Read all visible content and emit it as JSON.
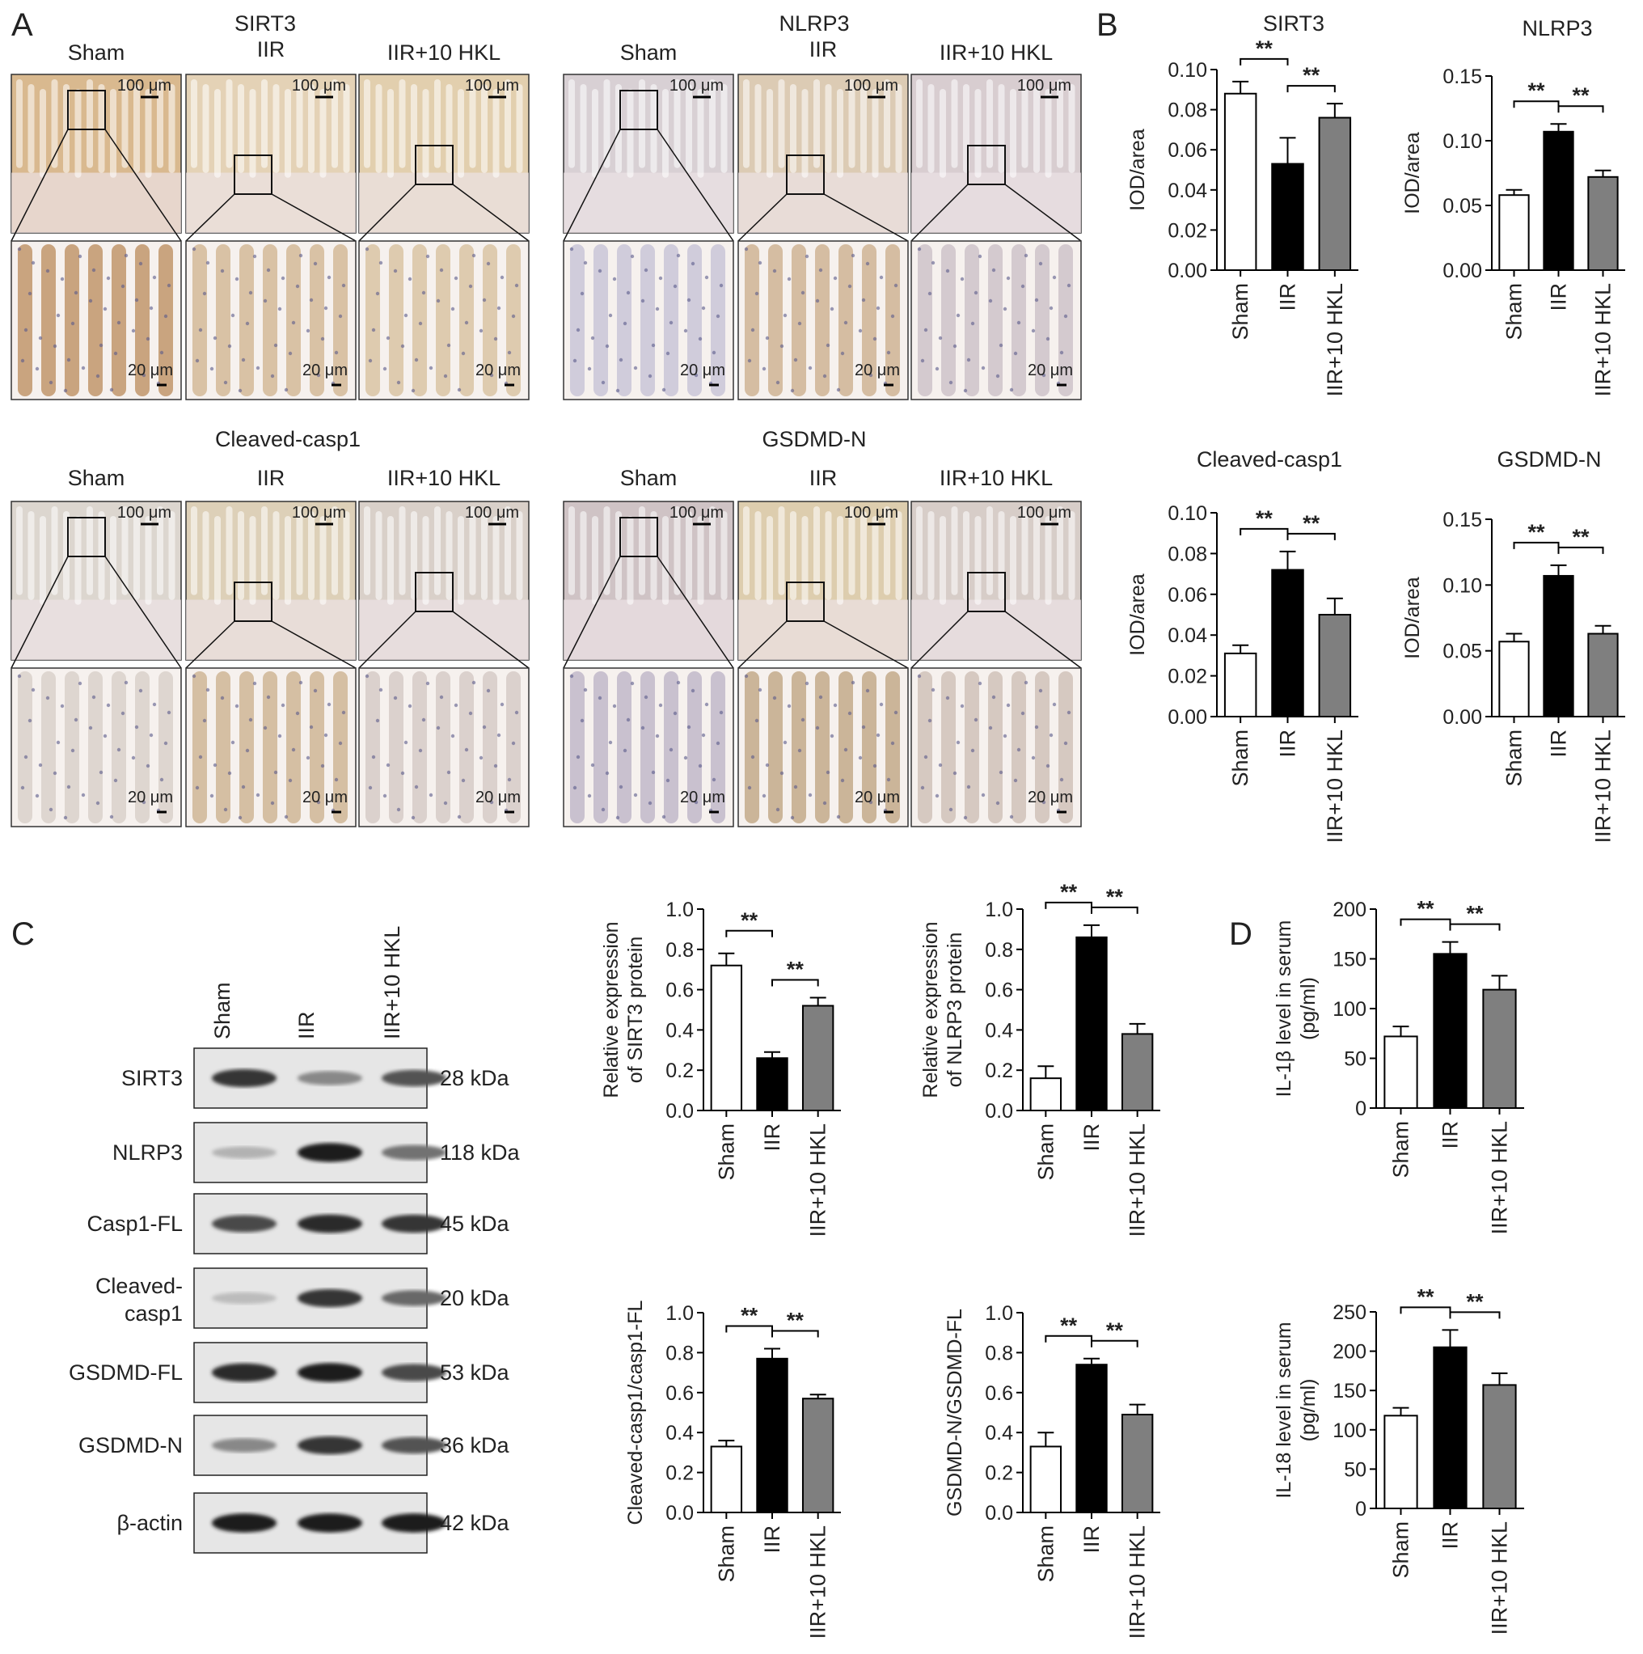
{
  "panel_labels": [
    "A",
    "B",
    "C",
    "D"
  ],
  "groups": [
    "Sham",
    "IIR",
    "IIR+10 HKL"
  ],
  "panel_a": {
    "scale_large": "100 μm",
    "scale_small": "20 μm",
    "stains": [
      {
        "name": "SIRT3",
        "group_labels": [
          "Sham",
          "IIR",
          "IIR+10 HKL"
        ],
        "tones": [
          "#d9b98f",
          "#e4d2b6",
          "#e2cfae"
        ],
        "zoom_tones": [
          "#b98a5a",
          "#cfb28c",
          "#d6bd9a"
        ]
      },
      {
        "name": "NLRP3",
        "group_labels": [
          "Sham",
          "IIR",
          "IIR+10 HKL"
        ],
        "tones": [
          "#d8d0d4",
          "#dccbb4",
          "#d8cdd0"
        ],
        "zoom_tones": [
          "#c3bfd4",
          "#c9ab88",
          "#c8bcc4"
        ]
      },
      {
        "name": "Cleaved-casp1",
        "group_labels": [
          "Sham",
          "IIR",
          "IIR+10 HKL"
        ],
        "tones": [
          "#dcd6cf",
          "#ddd0b8",
          "#d9d0c9"
        ],
        "zoom_tones": [
          "#d6ccc6",
          "#c9ae8a",
          "#d2c6c1"
        ]
      },
      {
        "name": "GSDMD-N",
        "group_labels": [
          "Sham",
          "IIR",
          "IIR+10 HKL"
        ],
        "tones": [
          "#cfc3c5",
          "#ddcdae",
          "#d7cdc8"
        ],
        "zoom_tones": [
          "#b9b0c4",
          "#bca07c",
          "#cbbbb1"
        ]
      }
    ]
  },
  "panel_b_ylabel": "IOD/area",
  "panel_c_blot": {
    "rows": [
      {
        "label": [
          "SIRT3"
        ],
        "kda": "28 kDa",
        "intensity": [
          0.85,
          0.45,
          0.7
        ]
      },
      {
        "label": [
          "NLRP3"
        ],
        "kda": "118 kDa",
        "intensity": [
          0.25,
          0.95,
          0.55
        ]
      },
      {
        "label": [
          "Casp1-FL"
        ],
        "kda": "45 kDa",
        "intensity": [
          0.75,
          0.9,
          0.85
        ]
      },
      {
        "label": [
          "Cleaved-",
          "casp1"
        ],
        "kda": "20 kDa",
        "intensity": [
          0.2,
          0.85,
          0.6
        ]
      },
      {
        "label": [
          "GSDMD-FL"
        ],
        "kda": "53 kDa",
        "intensity": [
          0.9,
          0.95,
          0.75
        ]
      },
      {
        "label": [
          "GSDMD-N"
        ],
        "kda": "36 kDa",
        "intensity": [
          0.45,
          0.85,
          0.7
        ]
      },
      {
        "label": [
          "β-actin"
        ],
        "kda": "42 kDa",
        "intensity": [
          0.95,
          0.95,
          0.95
        ]
      }
    ]
  },
  "significance_mark": "**",
  "colors": {
    "sham": "#ffffff",
    "iir": "#000000",
    "hkl": "#7f7f7f"
  },
  "chart_data": [
    {
      "id": "b_sirt3",
      "type": "bar",
      "title": "SIRT3",
      "ylabel": [
        "IOD/area"
      ],
      "categories": [
        "Sham",
        "IIR",
        "IIR+10 HKL"
      ],
      "values": [
        0.088,
        0.053,
        0.076
      ],
      "errors": [
        0.006,
        0.013,
        0.007
      ],
      "ylim": [
        0,
        0.1
      ],
      "yticks": [
        "0.00",
        "0.02",
        "0.04",
        "0.06",
        "0.08",
        "0.10"
      ],
      "ytick_values": [
        0,
        0.02,
        0.04,
        0.06,
        0.08,
        0.1
      ],
      "significance": [
        [
          0,
          1,
          "**"
        ],
        [
          1,
          2,
          "**"
        ]
      ]
    },
    {
      "id": "b_nlrp3",
      "type": "bar",
      "title": "NLRP3",
      "ylabel": [
        "IOD/area"
      ],
      "categories": [
        "Sham",
        "IIR",
        "IIR+10 HKL"
      ],
      "values": [
        0.058,
        0.107,
        0.072
      ],
      "errors": [
        0.004,
        0.006,
        0.005
      ],
      "ylim": [
        0,
        0.15
      ],
      "yticks": [
        "0.00",
        "0.05",
        "0.10",
        "0.15"
      ],
      "ytick_values": [
        0,
        0.05,
        0.1,
        0.15
      ],
      "significance": [
        [
          0,
          1,
          "**"
        ],
        [
          1,
          2,
          "**"
        ]
      ]
    },
    {
      "id": "b_casp1",
      "type": "bar",
      "title": "Cleaved-casp1",
      "ylabel": [
        "IOD/area"
      ],
      "categories": [
        "Sham",
        "IIR",
        "IIR+10 HKL"
      ],
      "values": [
        0.031,
        0.072,
        0.05
      ],
      "errors": [
        0.004,
        0.009,
        0.008
      ],
      "ylim": [
        0,
        0.1
      ],
      "yticks": [
        "0.00",
        "0.02",
        "0.04",
        "0.06",
        "0.08",
        "0.10"
      ],
      "ytick_values": [
        0,
        0.02,
        0.04,
        0.06,
        0.08,
        0.1
      ],
      "significance": [
        [
          0,
          1,
          "**"
        ],
        [
          1,
          2,
          "**"
        ]
      ]
    },
    {
      "id": "b_gsdmd",
      "type": "bar",
      "title": "GSDMD-N",
      "ylabel": [
        "IOD/area"
      ],
      "categories": [
        "Sham",
        "IIR",
        "IIR+10 HKL"
      ],
      "values": [
        0.057,
        0.107,
        0.063
      ],
      "errors": [
        0.006,
        0.008,
        0.006
      ],
      "ylim": [
        0,
        0.15
      ],
      "yticks": [
        "0.00",
        "0.05",
        "0.10",
        "0.15"
      ],
      "ytick_values": [
        0,
        0.05,
        0.1,
        0.15
      ],
      "significance": [
        [
          0,
          1,
          "**"
        ],
        [
          1,
          2,
          "**"
        ]
      ]
    },
    {
      "id": "c_sirt3",
      "type": "bar",
      "title": "",
      "ylabel": [
        "Relative expression",
        "of SIRT3 protein"
      ],
      "categories": [
        "Sham",
        "IIR",
        "IIR+10 HKL"
      ],
      "values": [
        0.72,
        0.26,
        0.52
      ],
      "errors": [
        0.06,
        0.03,
        0.04
      ],
      "ylim": [
        0,
        1
      ],
      "yticks": [
        "0.0",
        "0.2",
        "0.4",
        "0.6",
        "0.8",
        "1.0"
      ],
      "ytick_values": [
        0,
        0.2,
        0.4,
        0.6,
        0.8,
        1
      ],
      "significance": [
        [
          0,
          1,
          "**"
        ],
        [
          1,
          2,
          "**"
        ]
      ]
    },
    {
      "id": "c_nlrp3",
      "type": "bar",
      "title": "",
      "ylabel": [
        "Relative expression",
        "of NLRP3 protein"
      ],
      "categories": [
        "Sham",
        "IIR",
        "IIR+10 HKL"
      ],
      "values": [
        0.16,
        0.86,
        0.38
      ],
      "errors": [
        0.06,
        0.06,
        0.05
      ],
      "ylim": [
        0,
        1
      ],
      "yticks": [
        "0.0",
        "0.2",
        "0.4",
        "0.6",
        "0.8",
        "1.0"
      ],
      "ytick_values": [
        0,
        0.2,
        0.4,
        0.6,
        0.8,
        1
      ],
      "significance": [
        [
          0,
          1,
          "**"
        ],
        [
          1,
          2,
          "**"
        ]
      ]
    },
    {
      "id": "c_casp1",
      "type": "bar",
      "title": "",
      "ylabel": [
        "Cleaved-casp1/casp1-FL"
      ],
      "categories": [
        "Sham",
        "IIR",
        "IIR+10 HKL"
      ],
      "values": [
        0.33,
        0.77,
        0.57
      ],
      "errors": [
        0.03,
        0.05,
        0.02
      ],
      "ylim": [
        0,
        1
      ],
      "yticks": [
        "0.0",
        "0.2",
        "0.4",
        "0.6",
        "0.8",
        "1.0"
      ],
      "ytick_values": [
        0,
        0.2,
        0.4,
        0.6,
        0.8,
        1
      ],
      "significance": [
        [
          0,
          1,
          "**"
        ],
        [
          1,
          2,
          "**"
        ]
      ]
    },
    {
      "id": "c_gsdmd",
      "type": "bar",
      "title": "",
      "ylabel": [
        "GSDMD-N/GSDMD-FL"
      ],
      "categories": [
        "Sham",
        "IIR",
        "IIR+10 HKL"
      ],
      "values": [
        0.33,
        0.74,
        0.49
      ],
      "errors": [
        0.07,
        0.03,
        0.05
      ],
      "ylim": [
        0,
        1
      ],
      "yticks": [
        "0.0",
        "0.2",
        "0.4",
        "0.6",
        "0.8",
        "1.0"
      ],
      "ytick_values": [
        0,
        0.2,
        0.4,
        0.6,
        0.8,
        1
      ],
      "significance": [
        [
          0,
          1,
          "**"
        ],
        [
          1,
          2,
          "**"
        ]
      ]
    },
    {
      "id": "d_il1b",
      "type": "bar",
      "title": "",
      "ylabel": [
        "IL-1β level in serum",
        "(pg/ml)"
      ],
      "categories": [
        "Sham",
        "IIR",
        "IIR+10 HKL"
      ],
      "values": [
        72,
        155,
        119
      ],
      "errors": [
        10,
        12,
        14
      ],
      "ylim": [
        0,
        200
      ],
      "yticks": [
        "0",
        "50",
        "100",
        "150",
        "200"
      ],
      "ytick_values": [
        0,
        50,
        100,
        150,
        200
      ],
      "significance": [
        [
          0,
          1,
          "**"
        ],
        [
          1,
          2,
          "**"
        ]
      ]
    },
    {
      "id": "d_il18",
      "type": "bar",
      "title": "",
      "ylabel": [
        "IL-18 level in serum",
        "(pg/ml)"
      ],
      "categories": [
        "Sham",
        "IIR",
        "IIR+10 HKL"
      ],
      "values": [
        118,
        205,
        157
      ],
      "errors": [
        10,
        22,
        15
      ],
      "ylim": [
        0,
        250
      ],
      "yticks": [
        "0",
        "50",
        "100",
        "150",
        "200",
        "250"
      ],
      "ytick_values": [
        0,
        50,
        100,
        150,
        200,
        250
      ],
      "significance": [
        [
          0,
          1,
          "**"
        ],
        [
          1,
          2,
          "**"
        ]
      ]
    }
  ]
}
